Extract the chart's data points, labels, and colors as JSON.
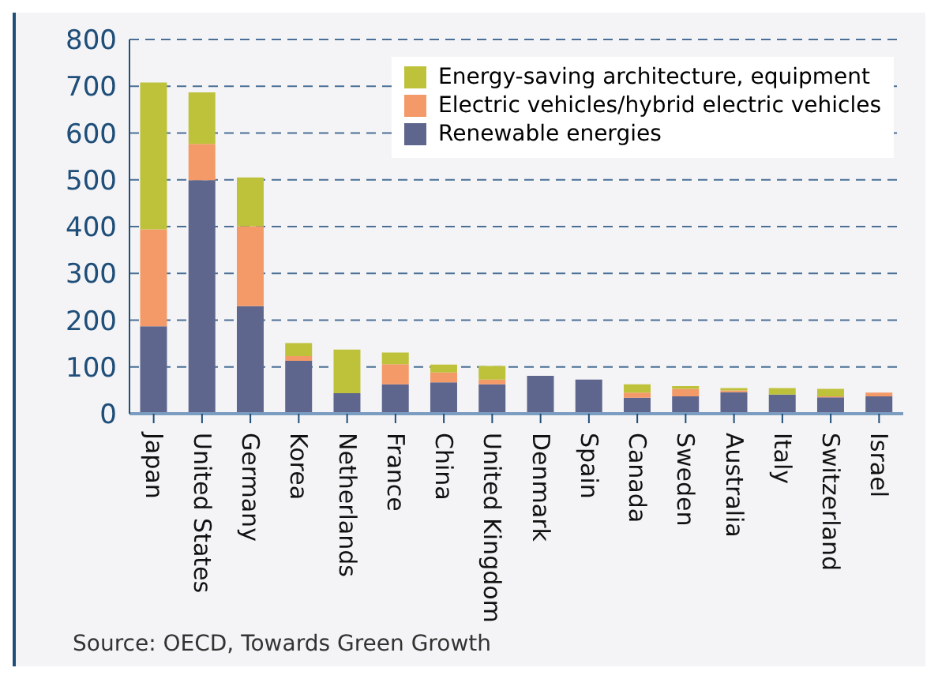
{
  "chart_data": {
    "type": "bar",
    "stacked": true,
    "categories": [
      "Japan",
      "United States",
      "Germany",
      "Korea",
      "Netherlands",
      "France",
      "China",
      "United Kingdom",
      "Denmark",
      "Spain",
      "Canada",
      "Sweden",
      "Australia",
      "Italy",
      "Switzerland",
      "Israel"
    ],
    "series": [
      {
        "name": "Renewable energies",
        "color": "#5f668d",
        "values": [
          187,
          499,
          230,
          113,
          44,
          63,
          67,
          63,
          81,
          73,
          34,
          37,
          46,
          41,
          35,
          37
        ]
      },
      {
        "name": "Electric vehicles/hybrid electric vehicles",
        "color": "#f39a68",
        "values": [
          207,
          78,
          171,
          10,
          0,
          43,
          21,
          10,
          0,
          0,
          11,
          16,
          4,
          0,
          2,
          8
        ]
      },
      {
        "name": "Energy-saving architecture, equipment",
        "color": "#bec23a",
        "values": [
          314,
          110,
          104,
          28,
          93,
          25,
          17,
          29,
          0,
          0,
          18,
          6,
          5,
          14,
          16,
          0
        ]
      }
    ],
    "ylim": [
      0,
      800
    ],
    "yticks": [
      0,
      100,
      200,
      300,
      400,
      500,
      600,
      700,
      800
    ],
    "grid": "y",
    "legend": "top right",
    "annotations": [
      "Source: OECD, Towards Green Growth"
    ]
  }
}
